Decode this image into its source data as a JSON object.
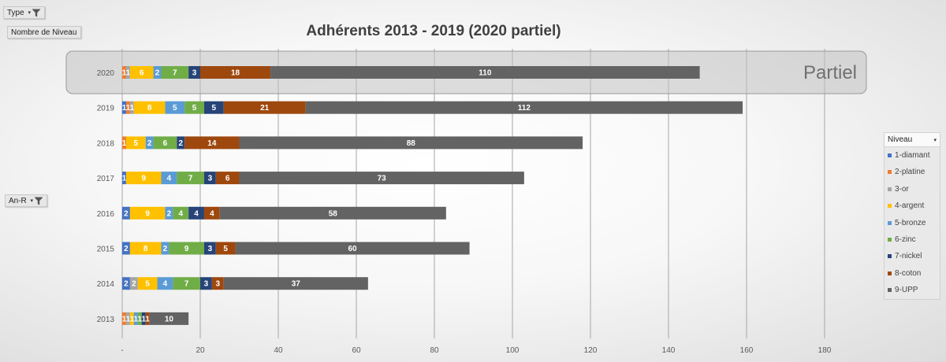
{
  "filters": {
    "type": {
      "label": "Type",
      "icon": "filter-icon"
    },
    "value_field": {
      "label": "Nombre de Niveau"
    },
    "row_field": {
      "label": "An-R",
      "icon": "filter-icon"
    }
  },
  "legend": {
    "header": "Niveau",
    "dropdown_icon": "chevron-down-icon"
  },
  "annotation": {
    "text": "Partiel"
  },
  "chart_data": {
    "type": "bar",
    "orientation": "horizontal",
    "stacked": true,
    "title": "Adhérents 2013 - 2019 (2020 partiel)",
    "categories": [
      "2020",
      "2019",
      "2018",
      "2017",
      "2016",
      "2015",
      "2014",
      "2013"
    ],
    "x_ticks": [
      "-",
      "20",
      "40",
      "60",
      "80",
      "100",
      "120",
      "140",
      "160",
      "180"
    ],
    "xlim": [
      0,
      180
    ],
    "grid": true,
    "legend_position": "right",
    "highlight_category": "2020",
    "series": [
      {
        "name": "1-diamant",
        "color": "#4472c4",
        "text_color": "#ffffff",
        "values": [
          0,
          1,
          0,
          1,
          2,
          2,
          2,
          0
        ]
      },
      {
        "name": "2-platine",
        "color": "#ed7d31",
        "text_color": "#ffffff",
        "values": [
          1,
          1,
          1,
          0,
          0,
          0,
          0,
          1
        ]
      },
      {
        "name": "3-or",
        "color": "#a5a5a5",
        "text_color": "#ffffff",
        "values": [
          1,
          1,
          0,
          0,
          0,
          0,
          2,
          1
        ]
      },
      {
        "name": "4-argent",
        "color": "#ffc000",
        "text_color": "#ffffff",
        "values": [
          6,
          8,
          5,
          9,
          9,
          8,
          5,
          1
        ]
      },
      {
        "name": "5-bronze",
        "color": "#5b9bd5",
        "text_color": "#ffffff",
        "values": [
          2,
          5,
          2,
          4,
          2,
          2,
          4,
          1
        ]
      },
      {
        "name": "6-zinc",
        "color": "#70ad47",
        "text_color": "#ffffff",
        "values": [
          7,
          5,
          6,
          7,
          4,
          9,
          7,
          1
        ]
      },
      {
        "name": "7-nickel",
        "color": "#264478",
        "text_color": "#ffffff",
        "values": [
          3,
          5,
          2,
          3,
          4,
          3,
          3,
          1
        ]
      },
      {
        "name": "8-coton",
        "color": "#9e480e",
        "text_color": "#ffffff",
        "values": [
          18,
          21,
          14,
          6,
          4,
          5,
          3,
          1
        ]
      },
      {
        "name": "9-UPP",
        "color": "#636363",
        "text_color": "#ffffff",
        "values": [
          110,
          112,
          88,
          73,
          58,
          60,
          37,
          10
        ]
      }
    ]
  }
}
